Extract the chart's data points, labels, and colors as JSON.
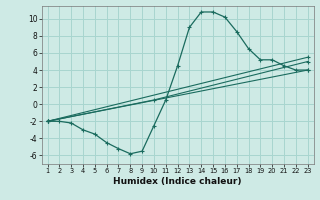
{
  "xlabel": "Humidex (Indice chaleur)",
  "xlim": [
    0.5,
    23.5
  ],
  "ylim": [
    -7,
    11.5
  ],
  "background_color": "#ceeae5",
  "grid_color": "#a8d5cf",
  "line_color": "#1a6b5e",
  "xticks": [
    1,
    2,
    3,
    4,
    5,
    6,
    7,
    8,
    9,
    10,
    11,
    12,
    13,
    14,
    15,
    16,
    17,
    18,
    19,
    20,
    21,
    22,
    23
  ],
  "yticks": [
    -6,
    -4,
    -2,
    0,
    2,
    4,
    6,
    8,
    10
  ],
  "lines": [
    {
      "x": [
        1,
        2,
        3,
        4,
        5,
        6,
        7,
        8,
        9,
        10,
        11,
        12,
        13,
        14,
        15,
        16,
        17,
        18,
        19,
        20,
        21,
        22,
        23
      ],
      "y": [
        -2,
        -2,
        -2.2,
        -3,
        -3.5,
        -4.5,
        -5.2,
        -5.8,
        -5.5,
        -2.5,
        0.5,
        4.5,
        9.0,
        10.8,
        10.8,
        10.2,
        8.5,
        6.5,
        5.2,
        5.2,
        4.5,
        4.0,
        4.0
      ]
    },
    {
      "x": [
        1,
        23
      ],
      "y": [
        -2,
        4.0
      ]
    },
    {
      "x": [
        1,
        10,
        23
      ],
      "y": [
        -2,
        0.5,
        5.0
      ]
    },
    {
      "x": [
        1,
        23
      ],
      "y": [
        -2,
        5.5
      ]
    }
  ]
}
